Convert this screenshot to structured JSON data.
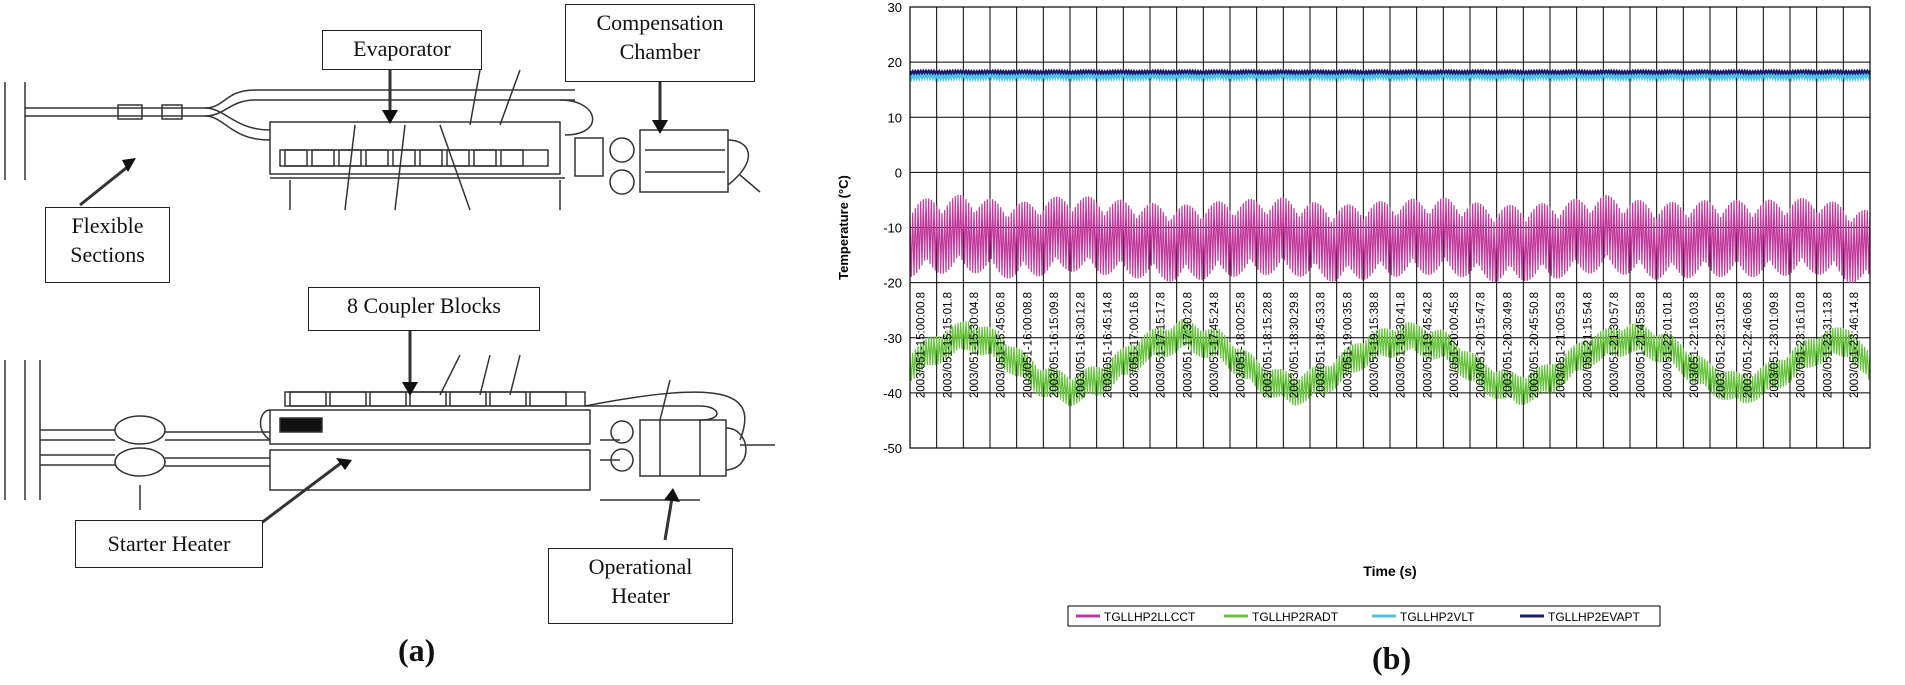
{
  "figure": {
    "panel_a": {
      "label": "(a)",
      "callouts": {
        "evaporator": "Evaporator",
        "compensation_chamber_line1": "Compensation",
        "compensation_chamber_line2": "Chamber",
        "flexible_sections_line1": "Flexible",
        "flexible_sections_line2": "Sections",
        "coupler_blocks": "8 Coupler Blocks",
        "starter_heater": "Starter Heater",
        "operational_heater_line1": "Operational",
        "operational_heater_line2": "Heater"
      }
    },
    "panel_b": {
      "label": "(b)"
    }
  },
  "chart_data": {
    "type": "line",
    "title": "",
    "xlabel": "Time (s)",
    "ylabel": "Temperature (°C)",
    "ylim": [
      -50,
      30
    ],
    "yticks": [
      -50,
      -40,
      -30,
      -20,
      -10,
      0,
      10,
      20,
      30
    ],
    "grid": true,
    "legend_position": "bottom",
    "x_tick_labels": [
      "2003/051-15:00:00.8",
      "2003/051-15:15:01.8",
      "2003/051-15:30:04.8",
      "2003/051-15:45:06.8",
      "2003/051-16:00:08.8",
      "2003/051-16:15:09.8",
      "2003/051-16:30:12.8",
      "2003/051-16:45:14.8",
      "2003/051-17:00:16.8",
      "2003/051-17:15:17.8",
      "2003/051-17:30:20.8",
      "2003/051-17:45:24.8",
      "2003/051-18:00:25.8",
      "2003/051-18:15:28.8",
      "2003/051-18:30:29.8",
      "2003/051-18:45:33.8",
      "2003/051-19:00:35.8",
      "2003/051-19:15:38.8",
      "2003/051-19:30:41.8",
      "2003/051-19:45:42.8",
      "2003/051-20:00:45.8",
      "2003/051-20:15:47.8",
      "2003/051-20:30:49.8",
      "2003/051-20:45:50.8",
      "2003/051-21:00:53.8",
      "2003/051-21:15:54.8",
      "2003/051-21:30:57.8",
      "2003/051-21:45:58.8",
      "2003/051-22:01:01.8",
      "2003/051-22:16:03.8",
      "2003/051-22:31:05.8",
      "2003/051-22:46:06.8",
      "2003/051-23:01:09.8",
      "2003/051-23:16:10.8",
      "2003/051-23:31:13.8",
      "2003/051-23:46:14.8"
    ],
    "x_hours": [
      15,
      24
    ],
    "series": [
      {
        "name": "TGLLHP2LLCCT",
        "color": "#c0399a",
        "base": [
          [
            15.0,
            -12
          ],
          [
            15.5,
            -11
          ],
          [
            16.0,
            -12.5
          ],
          [
            16.5,
            -11
          ],
          [
            17.0,
            -12
          ],
          [
            17.5,
            -13
          ],
          [
            18.0,
            -12
          ],
          [
            18.5,
            -11.5
          ],
          [
            19.0,
            -13
          ],
          [
            19.5,
            -12
          ],
          [
            20.0,
            -11.5
          ],
          [
            20.5,
            -13
          ],
          [
            21.0,
            -12.5
          ],
          [
            21.5,
            -11
          ],
          [
            22.0,
            -12.5
          ],
          [
            22.5,
            -12
          ],
          [
            23.0,
            -12
          ],
          [
            23.5,
            -11.5
          ],
          [
            24.0,
            -14
          ]
        ],
        "band": 7
      },
      {
        "name": "TGLLHP2RADT",
        "color": "#66c13c",
        "base": [
          [
            15.0,
            -35
          ],
          [
            15.3,
            -31.5
          ],
          [
            15.55,
            -29.5
          ],
          [
            15.8,
            -31.5
          ],
          [
            16.2,
            -37.5
          ],
          [
            16.5,
            -39.5
          ],
          [
            16.8,
            -37.5
          ],
          [
            17.2,
            -32
          ],
          [
            17.55,
            -29.5
          ],
          [
            17.9,
            -31.5
          ],
          [
            18.3,
            -37.5
          ],
          [
            18.6,
            -39.5
          ],
          [
            18.9,
            -37.5
          ],
          [
            19.3,
            -32
          ],
          [
            19.65,
            -30
          ],
          [
            20.0,
            -31.5
          ],
          [
            20.4,
            -37.5
          ],
          [
            20.7,
            -39.5
          ],
          [
            21.0,
            -37.5
          ],
          [
            21.4,
            -32
          ],
          [
            21.75,
            -30
          ],
          [
            22.1,
            -32
          ],
          [
            22.5,
            -37.5
          ],
          [
            22.8,
            -39.5
          ],
          [
            23.1,
            -37
          ],
          [
            23.5,
            -32
          ],
          [
            23.8,
            -30.5
          ],
          [
            24.0,
            -36
          ]
        ],
        "band": 3
      },
      {
        "name": "TGLLHP2VLT",
        "color": "#4fc3e6",
        "base": [
          [
            15.0,
            17.5
          ],
          [
            24.0,
            17.5
          ]
        ],
        "band": 0.5
      },
      {
        "name": "TGLLHP2EVAPT",
        "color": "#1a1a6e",
        "base": [
          [
            15.0,
            18.2
          ],
          [
            24.0,
            18.2
          ]
        ],
        "band": 0.25
      }
    ]
  }
}
